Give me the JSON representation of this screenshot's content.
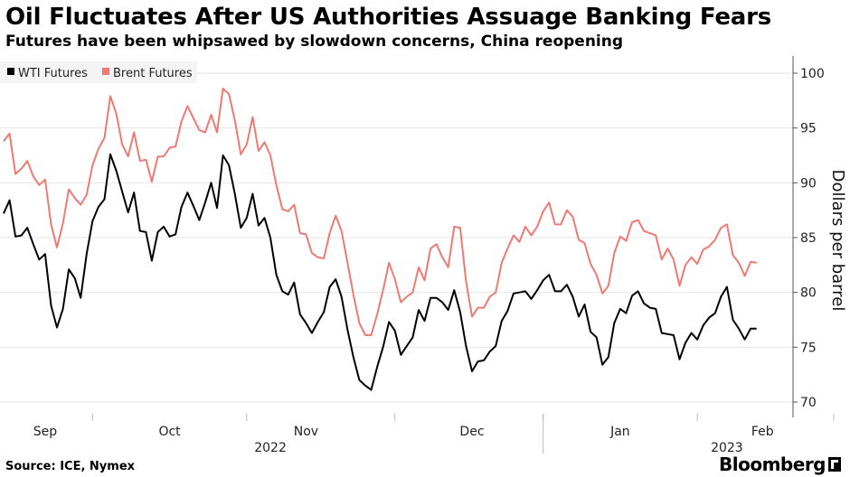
{
  "header": {
    "title": "Oil Fluctuates After US Authorities Assuage Banking Fears",
    "subtitle": "Futures have been whipsawed by slowdown concerns, China reopening"
  },
  "footer": {
    "source": "Source: ICE, Nymex",
    "brand": "Bloomberg"
  },
  "colors": {
    "wti": "#000000",
    "brent": "#ee7a72",
    "grid": "#e6e6e6",
    "axis": "#555555"
  },
  "chart_data": {
    "type": "line",
    "title": "Oil Fluctuates After US Authorities Assuage Banking Fears",
    "ylabel": "Dollars per barrel",
    "ylim": [
      68,
      102
    ],
    "yticks": [
      70,
      75,
      80,
      85,
      90,
      95,
      100
    ],
    "ytick_labels": [
      "70",
      "75",
      "80",
      "85",
      "90",
      "95",
      "100"
    ],
    "x_range": [
      0,
      144
    ],
    "month_labels": [
      {
        "label": "Sep",
        "x": 7
      },
      {
        "label": "Oct",
        "x": 28
      },
      {
        "label": "Nov",
        "x": 51
      },
      {
        "label": "Dec",
        "x": 79
      },
      {
        "label": "Jan",
        "x": 104
      },
      {
        "label": "Feb",
        "x": 128
      }
    ],
    "month_dividers": [
      15,
      41,
      66,
      91,
      117,
      140
    ],
    "year_labels": [
      {
        "label": "2022",
        "x": 45
      },
      {
        "label": "2023",
        "x": 122
      }
    ],
    "year_dividers": [
      91
    ],
    "legend": [
      "WTI Futures",
      "Brent Futures"
    ],
    "series": [
      {
        "name": "WTI Futures",
        "color": "#000000",
        "points": [
          [
            0,
            87.2
          ],
          [
            1,
            88.4
          ],
          [
            2,
            85.1
          ],
          [
            3,
            85.2
          ],
          [
            4,
            85.9
          ],
          [
            5,
            84.4
          ],
          [
            6,
            83.0
          ],
          [
            7,
            83.5
          ],
          [
            8,
            78.8
          ],
          [
            9,
            76.8
          ],
          [
            10,
            78.5
          ],
          [
            11,
            82.1
          ],
          [
            12,
            81.3
          ],
          [
            13,
            79.5
          ],
          [
            14,
            83.5
          ],
          [
            15,
            86.5
          ],
          [
            16,
            87.8
          ],
          [
            17,
            88.5
          ],
          [
            18,
            92.6
          ],
          [
            19,
            91.1
          ],
          [
            20,
            89.2
          ],
          [
            21,
            87.3
          ],
          [
            22,
            89.1
          ],
          [
            23,
            85.6
          ],
          [
            24,
            85.5
          ],
          [
            25,
            82.9
          ],
          [
            26,
            85.5
          ],
          [
            27,
            86.0
          ],
          [
            28,
            85.1
          ],
          [
            29,
            85.3
          ],
          [
            30,
            87.8
          ],
          [
            31,
            89.1
          ],
          [
            32,
            87.9
          ],
          [
            33,
            86.6
          ],
          [
            34,
            88.2
          ],
          [
            35,
            90.0
          ],
          [
            36,
            87.7
          ],
          [
            37,
            92.5
          ],
          [
            38,
            91.6
          ],
          [
            39,
            89.0
          ],
          [
            40,
            85.9
          ],
          [
            41,
            86.8
          ],
          [
            42,
            89.0
          ],
          [
            43,
            86.1
          ],
          [
            44,
            86.8
          ],
          [
            45,
            85.0
          ],
          [
            46,
            81.6
          ],
          [
            47,
            80.1
          ],
          [
            48,
            79.8
          ],
          [
            49,
            80.9
          ],
          [
            50,
            78.0
          ],
          [
            51,
            77.2
          ],
          [
            52,
            76.3
          ],
          [
            53,
            77.3
          ],
          [
            54,
            78.2
          ],
          [
            55,
            80.5
          ],
          [
            56,
            81.2
          ],
          [
            57,
            79.6
          ],
          [
            58,
            76.6
          ],
          [
            59,
            74.1
          ],
          [
            60,
            72.0
          ],
          [
            61,
            71.5
          ],
          [
            62,
            71.1
          ],
          [
            63,
            73.2
          ],
          [
            64,
            75.0
          ],
          [
            65,
            77.3
          ],
          [
            66,
            76.5
          ],
          [
            67,
            74.3
          ],
          [
            68,
            75.1
          ],
          [
            69,
            75.9
          ],
          [
            70,
            78.4
          ],
          [
            71,
            77.4
          ],
          [
            72,
            79.5
          ],
          [
            73,
            79.5
          ],
          [
            74,
            79.1
          ],
          [
            75,
            78.4
          ],
          [
            76,
            80.2
          ],
          [
            77,
            78.2
          ],
          [
            78,
            75.1
          ],
          [
            79,
            72.8
          ],
          [
            80,
            73.7
          ],
          [
            81,
            73.8
          ],
          [
            82,
            74.6
          ],
          [
            83,
            75.1
          ],
          [
            84,
            77.4
          ],
          [
            85,
            78.3
          ],
          [
            86,
            79.9
          ],
          [
            87,
            80.0
          ],
          [
            88,
            80.1
          ],
          [
            89,
            79.4
          ],
          [
            90,
            80.2
          ],
          [
            91,
            81.1
          ],
          [
            92,
            81.6
          ],
          [
            93,
            80.1
          ],
          [
            94,
            80.1
          ],
          [
            95,
            80.7
          ],
          [
            96,
            79.6
          ],
          [
            97,
            77.8
          ],
          [
            98,
            78.9
          ],
          [
            99,
            76.4
          ],
          [
            100,
            75.9
          ],
          [
            101,
            73.4
          ],
          [
            102,
            74.1
          ],
          [
            103,
            77.2
          ],
          [
            104,
            78.5
          ],
          [
            105,
            78.1
          ],
          [
            106,
            79.7
          ],
          [
            107,
            80.1
          ],
          [
            108,
            79.0
          ],
          [
            109,
            78.6
          ],
          [
            110,
            78.5
          ],
          [
            111,
            76.3
          ],
          [
            112,
            76.2
          ],
          [
            113,
            76.1
          ],
          [
            114,
            73.9
          ],
          [
            115,
            75.4
          ],
          [
            116,
            76.3
          ],
          [
            117,
            75.7
          ],
          [
            118,
            77.0
          ],
          [
            119,
            77.7
          ],
          [
            120,
            78.1
          ],
          [
            121,
            79.6
          ],
          [
            122,
            80.5
          ],
          [
            123,
            77.5
          ],
          [
            124,
            76.7
          ],
          [
            125,
            75.7
          ],
          [
            126,
            76.7
          ],
          [
            127,
            76.7
          ]
        ]
      },
      {
        "name": "Brent Futures",
        "color": "#ee7a72",
        "points": [
          [
            0,
            93.8
          ],
          [
            1,
            94.5
          ],
          [
            2,
            90.8
          ],
          [
            3,
            91.3
          ],
          [
            4,
            92.0
          ],
          [
            5,
            90.6
          ],
          [
            6,
            89.8
          ],
          [
            7,
            90.3
          ],
          [
            8,
            86.2
          ],
          [
            9,
            84.1
          ],
          [
            10,
            86.3
          ],
          [
            11,
            89.4
          ],
          [
            12,
            88.6
          ],
          [
            13,
            88.0
          ],
          [
            14,
            88.9
          ],
          [
            15,
            91.6
          ],
          [
            16,
            93.1
          ],
          [
            17,
            94.1
          ],
          [
            18,
            97.9
          ],
          [
            19,
            96.3
          ],
          [
            20,
            93.5
          ],
          [
            21,
            92.4
          ],
          [
            22,
            94.6
          ],
          [
            23,
            92.0
          ],
          [
            24,
            92.1
          ],
          [
            25,
            90.1
          ],
          [
            26,
            92.4
          ],
          [
            27,
            92.4
          ],
          [
            28,
            93.2
          ],
          [
            29,
            93.3
          ],
          [
            30,
            95.6
          ],
          [
            31,
            97.0
          ],
          [
            32,
            95.9
          ],
          [
            33,
            94.8
          ],
          [
            34,
            94.6
          ],
          [
            35,
            96.2
          ],
          [
            36,
            94.6
          ],
          [
            37,
            98.6
          ],
          [
            38,
            98.1
          ],
          [
            39,
            95.7
          ],
          [
            40,
            92.6
          ],
          [
            41,
            93.5
          ],
          [
            42,
            96.0
          ],
          [
            43,
            92.9
          ],
          [
            44,
            93.7
          ],
          [
            45,
            92.5
          ],
          [
            46,
            89.8
          ],
          [
            47,
            87.6
          ],
          [
            48,
            87.4
          ],
          [
            49,
            88.0
          ],
          [
            50,
            85.4
          ],
          [
            51,
            85.3
          ],
          [
            52,
            83.6
          ],
          [
            53,
            83.2
          ],
          [
            54,
            83.1
          ],
          [
            55,
            85.4
          ],
          [
            56,
            87.0
          ],
          [
            57,
            85.6
          ],
          [
            58,
            82.7
          ],
          [
            59,
            79.8
          ],
          [
            60,
            77.2
          ],
          [
            61,
            76.1
          ],
          [
            62,
            76.1
          ],
          [
            63,
            78.0
          ],
          [
            64,
            80.2
          ],
          [
            65,
            82.7
          ],
          [
            66,
            81.2
          ],
          [
            67,
            79.1
          ],
          [
            68,
            79.6
          ],
          [
            69,
            80.0
          ],
          [
            70,
            82.3
          ],
          [
            71,
            81.1
          ],
          [
            72,
            84.0
          ],
          [
            73,
            84.4
          ],
          [
            74,
            83.2
          ],
          [
            75,
            82.3
          ],
          [
            76,
            86.0
          ],
          [
            77,
            85.9
          ],
          [
            78,
            81.0
          ],
          [
            79,
            77.8
          ],
          [
            80,
            78.6
          ],
          [
            81,
            78.6
          ],
          [
            82,
            79.6
          ],
          [
            83,
            80.0
          ],
          [
            84,
            82.7
          ],
          [
            85,
            84.0
          ],
          [
            86,
            85.2
          ],
          [
            87,
            84.6
          ],
          [
            88,
            86.0
          ],
          [
            89,
            85.2
          ],
          [
            90,
            86.0
          ],
          [
            91,
            87.4
          ],
          [
            92,
            88.2
          ],
          [
            93,
            86.2
          ],
          [
            94,
            86.2
          ],
          [
            95,
            87.5
          ],
          [
            96,
            86.9
          ],
          [
            97,
            84.8
          ],
          [
            98,
            84.5
          ],
          [
            99,
            82.6
          ],
          [
            100,
            81.6
          ],
          [
            101,
            79.9
          ],
          [
            102,
            80.6
          ],
          [
            103,
            83.6
          ],
          [
            104,
            85.1
          ],
          [
            105,
            84.7
          ],
          [
            106,
            86.4
          ],
          [
            107,
            86.6
          ],
          [
            108,
            85.6
          ],
          [
            109,
            85.4
          ],
          [
            110,
            85.2
          ],
          [
            111,
            83.0
          ],
          [
            112,
            84.0
          ],
          [
            113,
            83.0
          ],
          [
            114,
            80.6
          ],
          [
            115,
            82.5
          ],
          [
            116,
            83.2
          ],
          [
            117,
            82.6
          ],
          [
            118,
            83.9
          ],
          [
            119,
            84.2
          ],
          [
            120,
            84.8
          ],
          [
            121,
            85.9
          ],
          [
            122,
            86.2
          ],
          [
            123,
            83.4
          ],
          [
            124,
            82.7
          ],
          [
            125,
            81.5
          ],
          [
            126,
            82.8
          ],
          [
            127,
            82.7
          ]
        ]
      }
    ]
  }
}
